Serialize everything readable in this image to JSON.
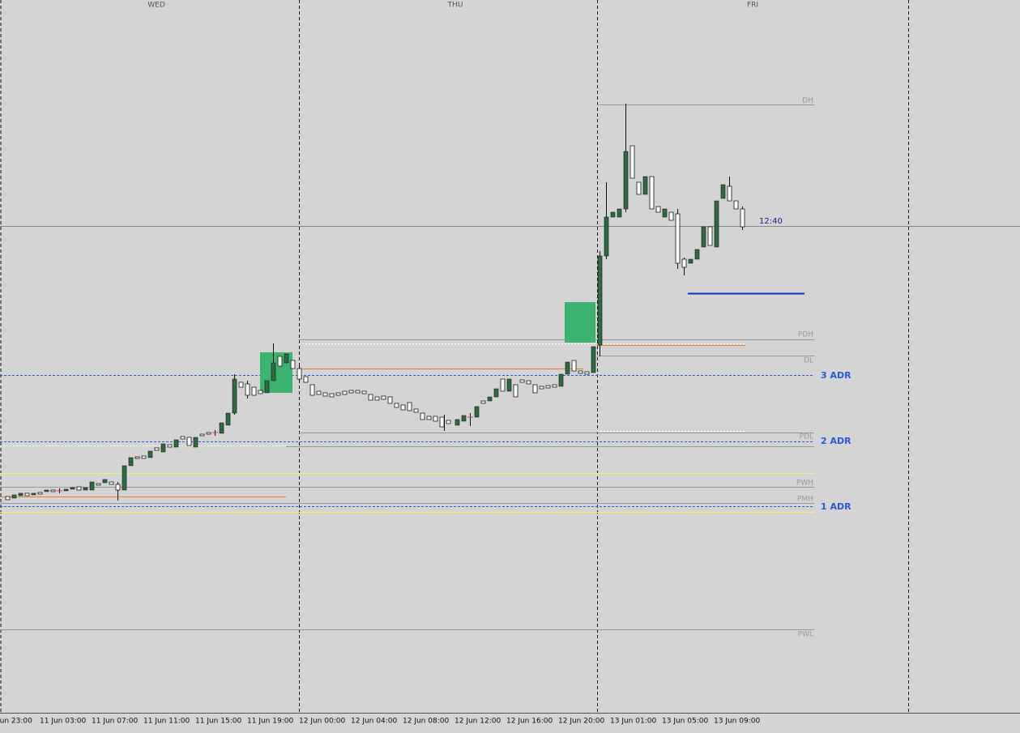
{
  "day_labels": [
    "WED",
    "THU",
    "FRI"
  ],
  "time_labels": [
    "Jun 23:00",
    "11 Jun 03:00",
    "11 Jun 07:00",
    "11 Jun 11:00",
    "11 Jun 15:00",
    "11 Jun 19:00",
    "12 Jun 00:00",
    "12 Jun 04:00",
    "12 Jun 08:00",
    "12 Jun 12:00",
    "12 Jun 16:00",
    "12 Jun 20:00",
    "13 Jun 01:00",
    "13 Jun 05:00",
    "13 Jun 09:00"
  ],
  "level_labels": [
    "DH",
    "PDH",
    "DL",
    "PDL",
    "PWH",
    "PMH",
    "PWL"
  ],
  "adr_labels": [
    "3 ADR",
    "2 ADR",
    "1 ADR"
  ],
  "current_time": "12:40"
}
